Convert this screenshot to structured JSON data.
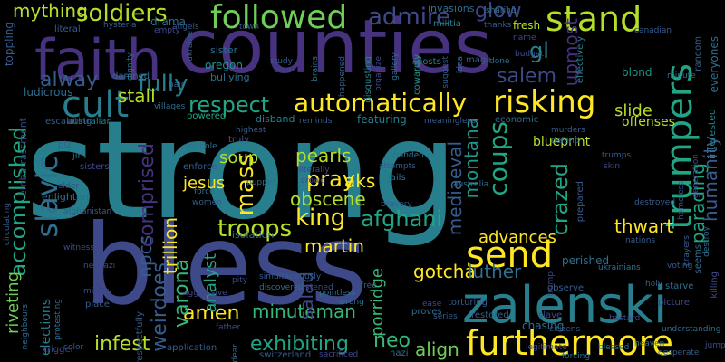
{
  "palette": {
    "purple": "#46327e",
    "indigo": "#3e4989",
    "blue": "#365c8d",
    "steel": "#2e6e8e",
    "teal": "#277f8e",
    "teal2": "#1f958b",
    "green": "#21a585",
    "jade": "#35b779",
    "lime": "#6ece58",
    "yellowgreen": "#b5de2b",
    "yellow": "#fde725"
  },
  "words": [
    "strong",
    "bless",
    "counties",
    "faith",
    "zalenski",
    "send",
    "furthermore",
    "followed",
    "stand",
    "trumpers",
    "soldiers",
    "admire",
    "cult",
    "slavic",
    "respect",
    "automatically",
    "risking",
    "king",
    "pray",
    "troops",
    "mass",
    "coups",
    "accomplished",
    "fully",
    "alway",
    "salem",
    "glow",
    "gl",
    "upmost",
    "martin",
    "minuteman",
    "pearls",
    "obscene",
    "aks",
    "jesus",
    "soup",
    "amen",
    "neo",
    "infest",
    "exhibiting",
    "varona",
    "analyst",
    "weirdoes",
    "gotcha",
    "porridge",
    "afghani",
    "luther",
    "montana",
    "crazed",
    "parading",
    "humanity",
    "mediaeval",
    "comprised",
    "npcs",
    "trillion",
    "salad",
    "mything",
    "stall",
    "slide",
    "thwart",
    "advances",
    "align",
    "riveting",
    "elections",
    "interested",
    "blueprint",
    "offenses",
    "fresh",
    "invasions",
    "sharing",
    "drama",
    "hysteria",
    "literal",
    "angels",
    "militia",
    "town",
    "sister",
    "oregon",
    "bullying",
    "disgusting",
    "cowardly",
    "posts",
    "blond",
    "minute",
    "everyones",
    "canadian",
    "random",
    "effectively",
    "toppling",
    "ludicrous",
    "damned",
    "hair",
    "australian",
    "villages",
    "powered",
    "disband",
    "reminds",
    "featuring",
    "meaningless",
    "economic",
    "escalating",
    "embarrassment",
    "plz",
    "jim",
    "isolation",
    "enforce",
    "force",
    "women",
    "sisters",
    "enlighten",
    "afghanistan",
    "older",
    "handed",
    "attempts",
    "jails",
    "bravery",
    "crowd",
    "shithole",
    "highest",
    "truly",
    "murders",
    "defend",
    "trumps",
    "skin",
    "destroy",
    "homeless",
    "generation",
    "prepared",
    "perished",
    "observe",
    "trump",
    "torturing",
    "chasing",
    "restored",
    "slave",
    "starve",
    "holy",
    "picture",
    "seems",
    "prayers",
    "killing",
    "proves",
    "series",
    "ease",
    "wrong",
    "free",
    "listened",
    "pointless",
    "simultaneously",
    "pity",
    "discovered",
    "application",
    "father",
    "dear",
    "switzerland",
    "sacrificed",
    "nazi",
    "color",
    "trigger",
    "neighbours",
    "place",
    "mighty",
    "protesting",
    "respectfully",
    "aggressive",
    "understanding",
    "desperate",
    "jump",
    "forcing",
    "citizens",
    "neonazi",
    "puppet",
    "study",
    "blue",
    "brains",
    "happened",
    "organize",
    "idea",
    "maga",
    "name",
    "done",
    "thanks",
    "budget",
    "dignity",
    "suggest",
    "literally",
    "australia",
    "ukraine",
    "empty",
    "gallery",
    "circulating",
    "witness",
    "ukrainians",
    "nations",
    "bastard",
    "blessed",
    "destroyed",
    "legitimate",
    "heaven",
    "voting"
  ]
}
